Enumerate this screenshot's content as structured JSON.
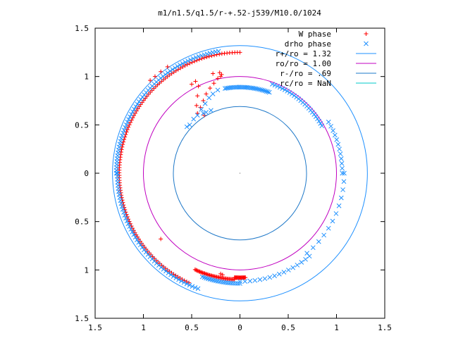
{
  "chart_data": {
    "type": "scatter",
    "title": "m1/n1.5/q1.5/r-+.52-j539/M10.0/1024",
    "xlabel": "",
    "ylabel": "",
    "xlim": [
      -1.5,
      1.5
    ],
    "ylim": [
      -1.5,
      1.5
    ],
    "x_tick_labels": [
      "1.5",
      "1",
      "0.5",
      "0",
      "0.5",
      "1",
      "1.5"
    ],
    "y_tick_labels": [
      "1.5",
      "1",
      "0.5",
      "0",
      "0.5",
      "1",
      "1.5"
    ],
    "grid": false,
    "legend_position": "top-right",
    "series": [
      {
        "name": "W phase",
        "marker": "plus",
        "color": "#ff0000",
        "arcs": [
          {
            "r": 1.25,
            "start_deg": 90,
            "end_deg": 181,
            "samples": 75
          },
          {
            "r": 1.25,
            "start_deg": 181,
            "end_deg": 245,
            "samples": 55
          },
          {
            "r": 1.1,
            "start_deg": 245,
            "end_deg": 267,
            "samples": 40
          },
          {
            "r": 1.08,
            "start_deg": 267,
            "end_deg": 273,
            "samples": 18
          }
        ],
        "points": [
          [
            -0.75,
            1.1
          ],
          [
            -0.82,
            1.05
          ],
          [
            -0.88,
            1.0
          ],
          [
            -0.93,
            0.96
          ],
          [
            -0.5,
            0.92
          ],
          [
            -0.46,
            0.95
          ],
          [
            -0.28,
            1.03
          ],
          [
            -0.21,
            1.04
          ],
          [
            -0.19,
            1.02
          ],
          [
            -0.43,
            0.9
          ],
          [
            -0.44,
            0.8
          ],
          [
            -0.45,
            0.7
          ],
          [
            -0.44,
            0.62
          ],
          [
            -0.41,
            0.68
          ],
          [
            -0.38,
            0.75
          ],
          [
            -0.35,
            0.82
          ],
          [
            -0.31,
            0.88
          ],
          [
            -0.27,
            0.93
          ],
          [
            -0.23,
            0.98
          ],
          [
            -0.2,
            1.0
          ],
          [
            -0.37,
            0.6
          ],
          [
            -0.82,
            -0.68
          ],
          [
            -0.2,
            -1.04
          ],
          [
            -0.18,
            -1.05
          ]
        ]
      },
      {
        "name": "drho phase",
        "marker": "x",
        "color": "#1e90ff",
        "arcs": [
          {
            "r": 1.28,
            "start_deg": 100,
            "end_deg": 180,
            "samples": 60
          },
          {
            "r": 1.27,
            "start_deg": 180,
            "end_deg": 250,
            "samples": 50
          },
          {
            "r": 1.14,
            "start_deg": 250,
            "end_deg": 270,
            "samples": 20
          },
          {
            "r": 1.12,
            "start_deg": 270,
            "end_deg": 310,
            "samples": 16
          },
          {
            "r": 1.08,
            "start_deg": 310,
            "end_deg": 360,
            "samples": 12
          },
          {
            "r": 1.06,
            "start_deg": 0,
            "end_deg": 30,
            "samples": 12
          },
          {
            "r": 0.98,
            "start_deg": 30,
            "end_deg": 70,
            "samples": 25
          },
          {
            "r": 0.89,
            "start_deg": 70,
            "end_deg": 100,
            "samples": 30
          }
        ],
        "points": [
          [
            -0.23,
            0.86
          ],
          [
            -0.28,
            0.82
          ],
          [
            -0.32,
            0.78
          ],
          [
            -0.36,
            0.72
          ],
          [
            -0.4,
            0.66
          ],
          [
            -0.44,
            0.6
          ],
          [
            -0.48,
            0.56
          ],
          [
            -0.52,
            0.5
          ],
          [
            -0.55,
            0.48
          ],
          [
            -0.3,
            0.65
          ],
          [
            -0.35,
            0.63
          ],
          [
            -0.38,
            0.62
          ]
        ]
      },
      {
        "name": "r+/ro = 1.32",
        "type": "circle",
        "r": 1.32,
        "color": "#1e90ff"
      },
      {
        "name": "ro/ro = 1.00",
        "type": "circle",
        "r": 1.0,
        "color": "#c000c0"
      },
      {
        "name": "r-/ro = .69",
        "type": "circle",
        "r": 0.69,
        "color": "#1e78c8"
      },
      {
        "name": "rc/ro = NaN",
        "type": "circle",
        "r": null,
        "color": "#00c8c8"
      }
    ]
  }
}
